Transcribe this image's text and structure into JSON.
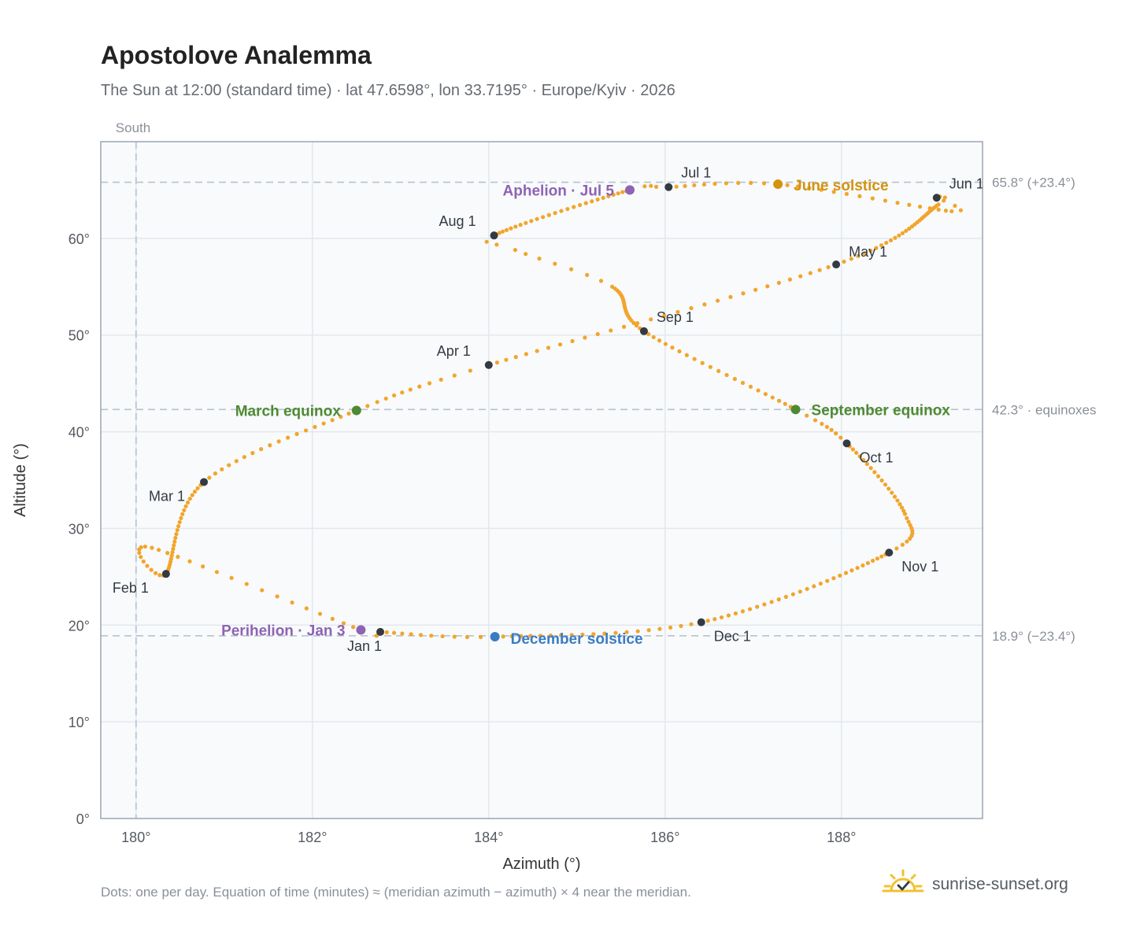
{
  "header": {
    "title": "Apostolove Analemma",
    "subtitle": "The Sun at 12:00 (standard time) · lat 47.6598°, lon 33.7195° · Europe/Kyiv · 2026"
  },
  "footer": {
    "note": "Dots: one per day. Equation of time (minutes) ≈ (meridian azimuth − azimuth) × 4 near the meridian.",
    "brand": "sunrise-sunset.org",
    "brand_icon": "sun-check-icon"
  },
  "colors": {
    "analemma": "#f2a52b",
    "month_marker": "#333a42",
    "june_solstice": "#d4930f",
    "december_solstice": "#3a7cc2",
    "equinox": "#4f8a32",
    "apsis": "#8e63b3",
    "plot_background": "#f8fafc",
    "reference_line": "#b7c3cf"
  },
  "chart_data": {
    "type": "scatter",
    "xlabel": "Azimuth (°)",
    "ylabel": "Altitude (°)",
    "xlim": [
      179.6,
      189.6
    ],
    "ylim": [
      0,
      70
    ],
    "x_ticks": [
      180,
      182,
      184,
      186,
      188
    ],
    "x_tick_labels": [
      "180°",
      "182°",
      "184°",
      "186°",
      "188°"
    ],
    "y_ticks": [
      0,
      10,
      20,
      30,
      40,
      50,
      60
    ],
    "y_tick_labels": [
      "0°",
      "10°",
      "20°",
      "30°",
      "40°",
      "50°",
      "60°"
    ],
    "grid": true,
    "meridian": {
      "azimuth": 180,
      "label": "South"
    },
    "reference_lines": [
      {
        "altitude": 65.8,
        "label": "65.8° (+23.4°)"
      },
      {
        "altitude": 42.3,
        "label": "42.3° · equinoxes"
      },
      {
        "altitude": 18.9,
        "label": "18.9° (−23.4°)"
      }
    ],
    "month_markers": [
      {
        "label": "Jan 1",
        "azimuth": 182.77,
        "altitude": 19.3
      },
      {
        "label": "Feb 1",
        "azimuth": 180.34,
        "altitude": 25.3
      },
      {
        "label": "Mar 1",
        "azimuth": 180.77,
        "altitude": 34.8
      },
      {
        "label": "Apr 1",
        "azimuth": 184.0,
        "altitude": 46.9
      },
      {
        "label": "May 1",
        "azimuth": 187.94,
        "altitude": 57.3
      },
      {
        "label": "Jun 1",
        "azimuth": 189.08,
        "altitude": 64.2
      },
      {
        "label": "Jul 1",
        "azimuth": 186.04,
        "altitude": 65.3
      },
      {
        "label": "Aug 1",
        "azimuth": 184.06,
        "altitude": 60.3
      },
      {
        "label": "Sep 1",
        "azimuth": 185.76,
        "altitude": 50.4
      },
      {
        "label": "Oct 1",
        "azimuth": 188.06,
        "altitude": 38.8
      },
      {
        "label": "Nov 1",
        "azimuth": 188.54,
        "altitude": 27.5
      },
      {
        "label": "Dec 1",
        "azimuth": 186.41,
        "altitude": 20.3
      }
    ],
    "events": [
      {
        "label": "June solstice",
        "azimuth": 187.28,
        "altitude": 65.6,
        "kind": "june_solstice"
      },
      {
        "label": "December solstice",
        "azimuth": 184.07,
        "altitude": 18.8,
        "kind": "december_solstice"
      },
      {
        "label": "March equinox",
        "azimuth": 182.5,
        "altitude": 42.2,
        "kind": "equinox"
      },
      {
        "label": "September equinox",
        "azimuth": 187.48,
        "altitude": 42.3,
        "kind": "equinox"
      },
      {
        "label": "Aphelion · Jul 5",
        "azimuth": 185.6,
        "altitude": 65.0,
        "kind": "apsis"
      },
      {
        "label": "Perihelion · Jan 3",
        "azimuth": 182.55,
        "altitude": 19.5,
        "kind": "apsis"
      }
    ]
  }
}
